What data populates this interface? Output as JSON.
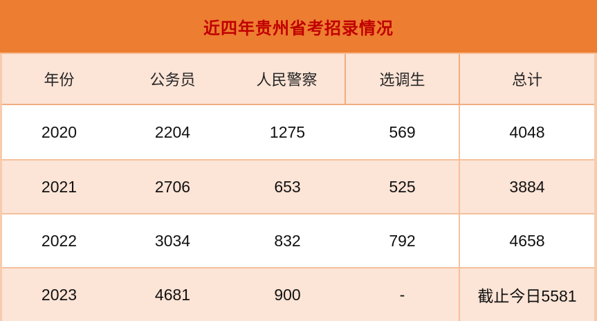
{
  "chart_data": {
    "type": "table",
    "title": "近四年贵州省考招录情况",
    "columns": [
      "年份",
      "公务员",
      "人民警察",
      "选调生",
      "总计"
    ],
    "rows": [
      [
        "2020",
        "2204",
        "1275",
        "569",
        "4048"
      ],
      [
        "2021",
        "2706",
        "653",
        "525",
        "3884"
      ],
      [
        "2022",
        "3034",
        "832",
        "792",
        "4658"
      ],
      [
        "2023",
        "4681",
        "900",
        "-",
        "截止今日5581"
      ]
    ],
    "layout_hints": {
      "alternating_row_colors": true,
      "vertical_line_after_columns_header": [
        "人民警察",
        "选调生"
      ],
      "vertical_line_after_columns_body": [
        "选调生"
      ]
    }
  },
  "colors": {
    "title_bar_bg": "#ED7D31",
    "title_text": "#C00000",
    "header_bg": "#FCE4D6",
    "row_white": "#FFFFFF",
    "row_peach": "#FCE4D6",
    "grid_line": "#F4B183",
    "outer_border": "#F8CBAD",
    "cell_text": "#111111"
  }
}
